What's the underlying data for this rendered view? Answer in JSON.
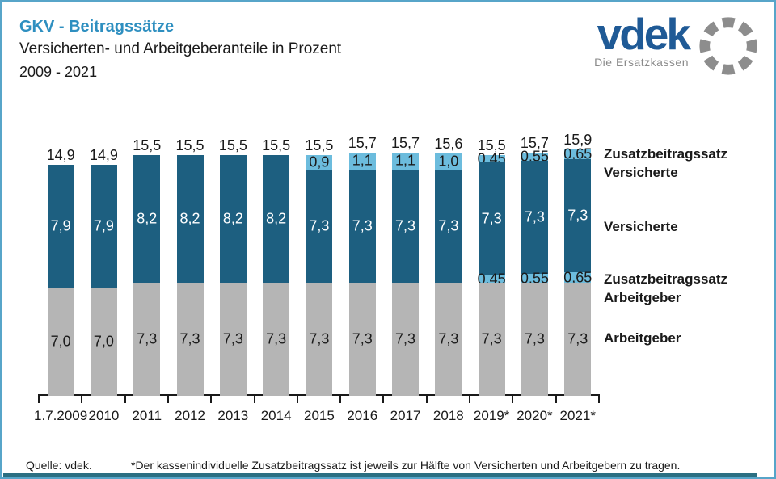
{
  "header": {
    "title": "GKV - Beitragssätze",
    "subtitle": "Versicherten- und Arbeitgeberanteile in Prozent",
    "period": "2009 - 2021"
  },
  "logo": {
    "name": "vdek",
    "tagline": "Die Ersatzkassen"
  },
  "colors": {
    "dark_blue": "#1d5f80",
    "light_blue": "#6cbcdd",
    "gray": "#b5b5b5",
    "title_blue": "#2e8fc0",
    "logo_blue": "#1f5a96",
    "logo_gray": "#8d8d8d",
    "frame_border": "#57a5c9",
    "teal_bar": "#2b6f82",
    "text": "#1a1a1a"
  },
  "legend": {
    "position": "right",
    "items": [
      {
        "lines": [
          "Zusatzbeitragssatz",
          "Versicherte"
        ]
      },
      {
        "lines": [
          "Versicherte"
        ]
      },
      {
        "lines": [
          "Zusatzbeitragssatz",
          "Arbeitgeber"
        ]
      },
      {
        "lines": [
          "Arbeitgeber"
        ]
      }
    ]
  },
  "footer": {
    "source": "Quelle: vdek.",
    "footnote": "*Der kassenindividuelle Zusatzbeitragssatz ist jeweils zur Hälfte von Versicherten und Arbeitgebern zu tragen."
  },
  "chart_data": {
    "type": "bar",
    "stacked": true,
    "unit": "percent",
    "ylim": [
      0,
      16
    ],
    "grid": false,
    "legend_position": "right",
    "categories": [
      "1.7.2009",
      "2010",
      "2011",
      "2012",
      "2013",
      "2014",
      "2015",
      "2016",
      "2017",
      "2018",
      "2019*",
      "2020*",
      "2021*"
    ],
    "totals": [
      "14,9",
      "14,9",
      "15,5",
      "15,5",
      "15,5",
      "15,5",
      "15,5",
      "15,7",
      "15,7",
      "15,6",
      "15,5",
      "15,7",
      "15,9"
    ],
    "series": [
      {
        "name": "Arbeitgeber",
        "color_key": "gray",
        "text": "dark",
        "values": [
          7.0,
          7.0,
          7.3,
          7.3,
          7.3,
          7.3,
          7.3,
          7.3,
          7.3,
          7.3,
          7.3,
          7.3,
          7.3
        ],
        "labels": [
          "7,0",
          "7,0",
          "7,3",
          "7,3",
          "7,3",
          "7,3",
          "7,3",
          "7,3",
          "7,3",
          "7,3",
          "7,3",
          "7,3",
          "7,3"
        ]
      },
      {
        "name": "Zusatzbeitragssatz Arbeitgeber",
        "color_key": "light_blue",
        "text": "dark",
        "values": [
          0,
          0,
          0,
          0,
          0,
          0,
          0,
          0,
          0,
          0,
          0.45,
          0.55,
          0.65
        ],
        "labels": [
          "",
          "",
          "",
          "",
          "",
          "",
          "",
          "",
          "",
          "",
          "0,45",
          "0,55",
          "0,65"
        ]
      },
      {
        "name": "Versicherte",
        "color_key": "dark_blue",
        "text": "light",
        "values": [
          7.9,
          7.9,
          8.2,
          8.2,
          8.2,
          8.2,
          7.3,
          7.3,
          7.3,
          7.3,
          7.3,
          7.3,
          7.3
        ],
        "labels": [
          "7,9",
          "7,9",
          "8,2",
          "8,2",
          "8,2",
          "8,2",
          "7,3",
          "7,3",
          "7,3",
          "7,3",
          "7,3",
          "7,3",
          "7,3"
        ]
      },
      {
        "name": "Zusatzbeitragssatz Versicherte",
        "color_key": "light_blue",
        "text": "dark",
        "values": [
          0,
          0,
          0,
          0,
          0,
          0,
          0.9,
          1.1,
          1.1,
          1.0,
          0.45,
          0.55,
          0.65
        ],
        "labels": [
          "",
          "",
          "",
          "",
          "",
          "",
          "0,9",
          "1,1",
          "1,1",
          "1,0",
          "0,45",
          "0,55",
          "0,65"
        ]
      }
    ]
  }
}
